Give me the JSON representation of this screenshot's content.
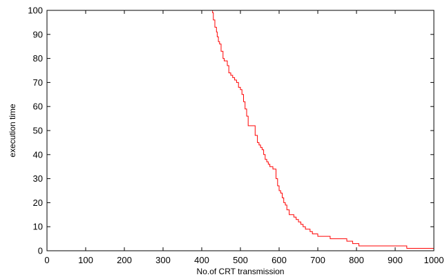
{
  "chart_data": {
    "type": "line",
    "title": "",
    "xlabel": "No.of CRT transmission",
    "ylabel": "execution time",
    "xlim": [
      0,
      1000
    ],
    "ylim": [
      0,
      100
    ],
    "xticks": [
      0,
      100,
      200,
      300,
      400,
      500,
      600,
      700,
      800,
      900,
      1000
    ],
    "yticks": [
      0,
      10,
      20,
      30,
      40,
      50,
      60,
      70,
      80,
      90,
      100
    ],
    "grid": false,
    "line_color": "#ff0000",
    "series": [
      {
        "step": true,
        "x": [
          0,
          428,
          430,
          434,
          438,
          440,
          443,
          446,
          450,
          455,
          458,
          462,
          466,
          470,
          475,
          480,
          485,
          490,
          495,
          500,
          504,
          508,
          512,
          516,
          520,
          524,
          528,
          532,
          538,
          544,
          548,
          552,
          556,
          560,
          564,
          568,
          572,
          576,
          580,
          584,
          588,
          592,
          596,
          600,
          604,
          608,
          612,
          616,
          620,
          626,
          632,
          638,
          644,
          650,
          656,
          662,
          668,
          674,
          680,
          686,
          692,
          700,
          708,
          716,
          724,
          732,
          745,
          760,
          775,
          790,
          806,
          820,
          840,
          880,
          900,
          930,
          1000
        ],
        "y": [
          100,
          99,
          96,
          93,
          91,
          89,
          87,
          86,
          83,
          80,
          79,
          79,
          77,
          74,
          73,
          72,
          71,
          70,
          68,
          67,
          65,
          62,
          59,
          56,
          52,
          52,
          52,
          52,
          48,
          45,
          44,
          43,
          42,
          40,
          38,
          37,
          36,
          35,
          35,
          34,
          34,
          30,
          27,
          25,
          24,
          22,
          20,
          19,
          17,
          15,
          15,
          14,
          13,
          12,
          11,
          10,
          9,
          9,
          8,
          7,
          7,
          6,
          6,
          6,
          6,
          5,
          5,
          5,
          4,
          3,
          2,
          2,
          2,
          2,
          2,
          1,
          1
        ]
      }
    ]
  }
}
